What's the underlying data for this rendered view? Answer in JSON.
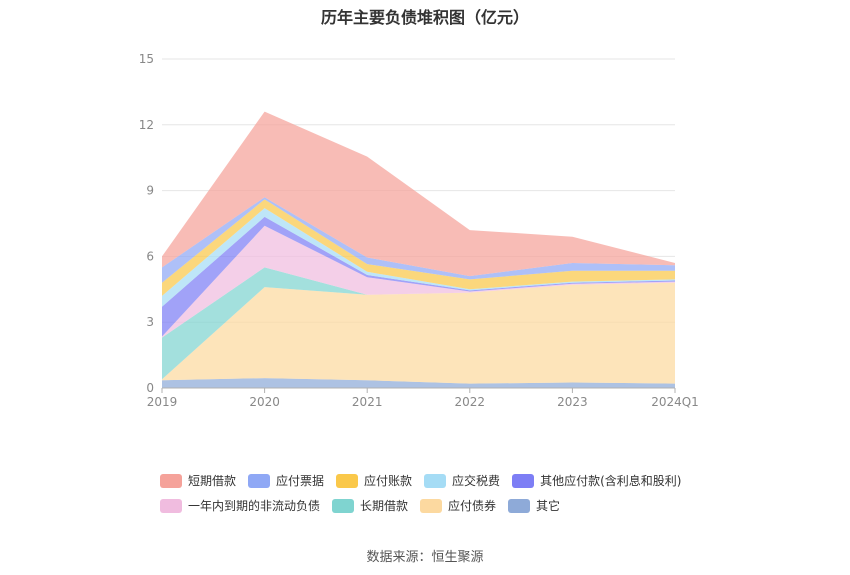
{
  "chart_data": {
    "type": "area",
    "stacked": true,
    "title": "历年主要负债堆积图（亿元）",
    "categories": [
      "2019",
      "2020",
      "2021",
      "2022",
      "2023",
      "2024Q1"
    ],
    "ylim": [
      0,
      15
    ],
    "yticks": [
      "0",
      "3",
      "6",
      "9",
      "12",
      "15"
    ],
    "grid": true,
    "legend_position": "bottom",
    "series": [
      {
        "name": "其它",
        "color": "#8eaad8",
        "values": [
          0.35,
          0.45,
          0.35,
          0.2,
          0.25,
          0.2
        ]
      },
      {
        "name": "应付债券",
        "color": "#fcd9a0",
        "values": [
          0.05,
          4.15,
          3.9,
          4.15,
          4.45,
          4.6
        ]
      },
      {
        "name": "长期借款",
        "color": "#7fd4d0",
        "values": [
          1.9,
          0.9,
          0.0,
          0.0,
          0.0,
          0.0
        ]
      },
      {
        "name": "一年内到期的非流动负债",
        "color": "#f0bcdf",
        "values": [
          0.05,
          1.9,
          0.8,
          0.05,
          0.05,
          0.05
        ]
      },
      {
        "name": "其他应付款(含利息和股利)",
        "color": "#7d7ef5",
        "values": [
          1.35,
          0.4,
          0.1,
          0.05,
          0.05,
          0.05
        ]
      },
      {
        "name": "应交税费",
        "color": "#a5dcf5",
        "values": [
          0.5,
          0.4,
          0.15,
          0.05,
          0.05,
          0.05
        ]
      },
      {
        "name": "应付账款",
        "color": "#fac84a",
        "values": [
          0.6,
          0.4,
          0.35,
          0.45,
          0.5,
          0.4
        ]
      },
      {
        "name": "应付票据",
        "color": "#8fa8f5",
        "values": [
          0.7,
          0.1,
          0.3,
          0.15,
          0.35,
          0.25
        ]
      },
      {
        "name": "短期借款",
        "color": "#f5a29a",
        "values": [
          0.5,
          3.9,
          4.6,
          2.1,
          1.2,
          0.1
        ]
      }
    ]
  },
  "source_text": "数据来源：恒生聚源"
}
